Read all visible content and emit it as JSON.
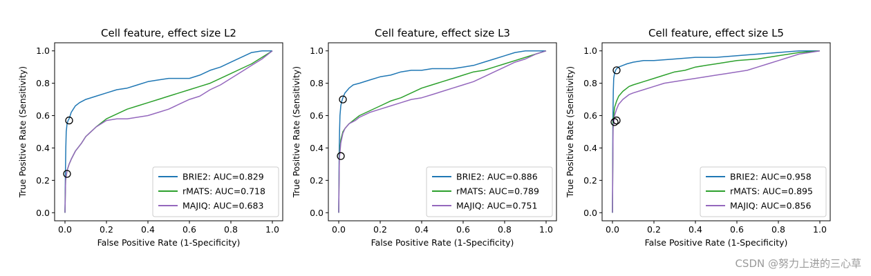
{
  "chart_data": [
    {
      "type": "line",
      "title": "Cell feature, effect size L2",
      "xlabel": "False Positive Rate (1-Specificity)",
      "ylabel": "True Positive Rate (Sensitivity)",
      "xlim": [
        -0.05,
        1.05
      ],
      "ylim": [
        -0.05,
        1.05
      ],
      "xticks": [
        "0.0",
        "0.2",
        "0.4",
        "0.6",
        "0.8",
        "1.0"
      ],
      "yticks": [
        "0.0",
        "0.2",
        "0.4",
        "0.6",
        "0.8",
        "1.0"
      ],
      "legend_position": "lower-right",
      "series": [
        {
          "name": "BRIE2",
          "legend": "BRIE2: AUC=0.829",
          "color": "#1f77b4",
          "x": [
            0,
            0.002,
            0.004,
            0.006,
            0.01,
            0.015,
            0.02,
            0.03,
            0.04,
            0.05,
            0.07,
            0.1,
            0.15,
            0.2,
            0.25,
            0.3,
            0.35,
            0.4,
            0.45,
            0.5,
            0.55,
            0.6,
            0.65,
            0.7,
            0.75,
            0.8,
            0.85,
            0.9,
            0.95,
            1.0
          ],
          "y": [
            0,
            0.24,
            0.4,
            0.5,
            0.55,
            0.57,
            0.58,
            0.62,
            0.64,
            0.66,
            0.68,
            0.7,
            0.72,
            0.74,
            0.76,
            0.77,
            0.79,
            0.81,
            0.82,
            0.83,
            0.83,
            0.83,
            0.85,
            0.88,
            0.9,
            0.93,
            0.96,
            0.99,
            1.0,
            1.0
          ]
        },
        {
          "name": "rMATS",
          "legend": "rMATS: AUC=0.718",
          "color": "#2ca02c",
          "x": [
            0,
            0.003,
            0.01,
            0.02,
            0.03,
            0.05,
            0.08,
            0.1,
            0.15,
            0.2,
            0.25,
            0.3,
            0.35,
            0.4,
            0.45,
            0.5,
            0.55,
            0.6,
            0.65,
            0.7,
            0.75,
            0.8,
            0.85,
            0.9,
            0.95,
            1.0
          ],
          "y": [
            0,
            0.2,
            0.26,
            0.3,
            0.33,
            0.38,
            0.43,
            0.47,
            0.53,
            0.58,
            0.61,
            0.64,
            0.66,
            0.68,
            0.7,
            0.72,
            0.74,
            0.76,
            0.78,
            0.8,
            0.83,
            0.86,
            0.89,
            0.92,
            0.96,
            1.0
          ]
        },
        {
          "name": "MAJIQ",
          "legend": "MAJIQ: AUC=0.683",
          "color": "#9467bd",
          "x": [
            0,
            0.003,
            0.01,
            0.02,
            0.03,
            0.05,
            0.08,
            0.1,
            0.15,
            0.2,
            0.25,
            0.3,
            0.35,
            0.4,
            0.45,
            0.5,
            0.55,
            0.6,
            0.65,
            0.7,
            0.75,
            0.8,
            0.85,
            0.9,
            0.95,
            1.0
          ],
          "y": [
            0,
            0.2,
            0.26,
            0.3,
            0.33,
            0.38,
            0.43,
            0.47,
            0.53,
            0.57,
            0.58,
            0.58,
            0.59,
            0.6,
            0.62,
            0.64,
            0.67,
            0.7,
            0.72,
            0.76,
            0.79,
            0.83,
            0.87,
            0.91,
            0.95,
            1.0
          ]
        }
      ],
      "markers": [
        {
          "x": 0.02,
          "y": 0.57
        },
        {
          "x": 0.01,
          "y": 0.24
        }
      ]
    },
    {
      "type": "line",
      "title": "Cell feature, effect size L3",
      "xlabel": "False Positive Rate (1-Specificity)",
      "ylabel": "True Positive Rate (Sensitivity)",
      "xlim": [
        -0.05,
        1.05
      ],
      "ylim": [
        -0.05,
        1.05
      ],
      "xticks": [
        "0.0",
        "0.2",
        "0.4",
        "0.6",
        "0.8",
        "1.0"
      ],
      "yticks": [
        "0.0",
        "0.2",
        "0.4",
        "0.6",
        "0.8",
        "1.0"
      ],
      "legend_position": "lower-right",
      "series": [
        {
          "name": "BRIE2",
          "legend": "BRIE2: AUC=0.886",
          "color": "#1f77b4",
          "x": [
            0,
            0.002,
            0.004,
            0.006,
            0.01,
            0.015,
            0.02,
            0.03,
            0.05,
            0.07,
            0.1,
            0.15,
            0.2,
            0.25,
            0.3,
            0.35,
            0.4,
            0.45,
            0.5,
            0.55,
            0.6,
            0.65,
            0.7,
            0.75,
            0.8,
            0.85,
            0.9,
            0.95,
            1.0
          ],
          "y": [
            0,
            0.35,
            0.5,
            0.6,
            0.66,
            0.69,
            0.71,
            0.74,
            0.77,
            0.79,
            0.8,
            0.82,
            0.84,
            0.85,
            0.87,
            0.88,
            0.88,
            0.89,
            0.89,
            0.89,
            0.9,
            0.91,
            0.93,
            0.95,
            0.97,
            0.99,
            1.0,
            1.0,
            1.0
          ]
        },
        {
          "name": "rMATS",
          "legend": "rMATS: AUC=0.789",
          "color": "#2ca02c",
          "x": [
            0,
            0.003,
            0.01,
            0.02,
            0.03,
            0.05,
            0.08,
            0.1,
            0.15,
            0.2,
            0.25,
            0.3,
            0.35,
            0.4,
            0.45,
            0.5,
            0.55,
            0.6,
            0.65,
            0.7,
            0.75,
            0.8,
            0.85,
            0.9,
            0.95,
            1.0
          ],
          "y": [
            0,
            0.35,
            0.45,
            0.5,
            0.52,
            0.55,
            0.58,
            0.6,
            0.63,
            0.66,
            0.69,
            0.71,
            0.74,
            0.77,
            0.79,
            0.81,
            0.83,
            0.85,
            0.87,
            0.88,
            0.9,
            0.92,
            0.94,
            0.96,
            0.98,
            1.0
          ]
        },
        {
          "name": "MAJIQ",
          "legend": "MAJIQ: AUC=0.751",
          "color": "#9467bd",
          "x": [
            0,
            0.003,
            0.01,
            0.02,
            0.03,
            0.05,
            0.08,
            0.1,
            0.15,
            0.2,
            0.25,
            0.3,
            0.35,
            0.4,
            0.45,
            0.5,
            0.55,
            0.6,
            0.65,
            0.7,
            0.75,
            0.8,
            0.85,
            0.9,
            0.95,
            1.0
          ],
          "y": [
            0,
            0.33,
            0.43,
            0.49,
            0.52,
            0.55,
            0.57,
            0.59,
            0.62,
            0.64,
            0.66,
            0.68,
            0.7,
            0.71,
            0.73,
            0.75,
            0.77,
            0.79,
            0.81,
            0.84,
            0.87,
            0.9,
            0.93,
            0.95,
            0.98,
            1.0
          ]
        }
      ],
      "markers": [
        {
          "x": 0.02,
          "y": 0.7
        },
        {
          "x": 0.01,
          "y": 0.35
        }
      ]
    },
    {
      "type": "line",
      "title": "Cell feature, effect size L5",
      "xlabel": "False Positive Rate (1-Specificity)",
      "ylabel": "True Positive Rate (Sensitivity)",
      "xlim": [
        -0.05,
        1.05
      ],
      "ylim": [
        -0.05,
        1.05
      ],
      "xticks": [
        "0.0",
        "0.2",
        "0.4",
        "0.6",
        "0.8",
        "1.0"
      ],
      "yticks": [
        "0.0",
        "0.2",
        "0.4",
        "0.6",
        "0.8",
        "1.0"
      ],
      "legend_position": "lower-right",
      "series": [
        {
          "name": "BRIE2",
          "legend": "BRIE2: AUC=0.958",
          "color": "#1f77b4",
          "x": [
            0,
            0.002,
            0.004,
            0.006,
            0.01,
            0.015,
            0.02,
            0.03,
            0.05,
            0.07,
            0.1,
            0.15,
            0.2,
            0.3,
            0.4,
            0.5,
            0.6,
            0.7,
            0.8,
            0.9,
            1.0
          ],
          "y": [
            0,
            0.56,
            0.75,
            0.83,
            0.86,
            0.88,
            0.89,
            0.9,
            0.91,
            0.92,
            0.93,
            0.94,
            0.94,
            0.95,
            0.96,
            0.96,
            0.97,
            0.98,
            0.99,
            1.0,
            1.0
          ]
        },
        {
          "name": "rMATS",
          "legend": "rMATS: AUC=0.895",
          "color": "#2ca02c",
          "x": [
            0,
            0.003,
            0.01,
            0.02,
            0.03,
            0.05,
            0.08,
            0.1,
            0.15,
            0.2,
            0.25,
            0.3,
            0.35,
            0.4,
            0.45,
            0.5,
            0.55,
            0.6,
            0.7,
            0.8,
            0.9,
            1.0
          ],
          "y": [
            0,
            0.56,
            0.65,
            0.69,
            0.72,
            0.75,
            0.78,
            0.79,
            0.81,
            0.83,
            0.85,
            0.87,
            0.88,
            0.9,
            0.91,
            0.92,
            0.93,
            0.94,
            0.95,
            0.97,
            0.99,
            1.0
          ]
        },
        {
          "name": "MAJIQ",
          "legend": "MAJIQ: AUC=0.856",
          "color": "#9467bd",
          "x": [
            0,
            0.003,
            0.01,
            0.02,
            0.03,
            0.05,
            0.08,
            0.1,
            0.15,
            0.2,
            0.25,
            0.3,
            0.35,
            0.4,
            0.45,
            0.5,
            0.55,
            0.6,
            0.65,
            0.7,
            0.75,
            0.8,
            0.85,
            0.9,
            0.95,
            1.0
          ],
          "y": [
            0,
            0.52,
            0.6,
            0.64,
            0.67,
            0.7,
            0.73,
            0.74,
            0.76,
            0.78,
            0.8,
            0.81,
            0.82,
            0.83,
            0.84,
            0.85,
            0.86,
            0.87,
            0.88,
            0.9,
            0.92,
            0.94,
            0.96,
            0.98,
            0.99,
            1.0
          ]
        }
      ],
      "markers": [
        {
          "x": 0.02,
          "y": 0.88
        },
        {
          "x": 0.01,
          "y": 0.56
        },
        {
          "x": 0.02,
          "y": 0.57
        }
      ]
    }
  ],
  "watermark": "CSDN @努力上进的三心草"
}
